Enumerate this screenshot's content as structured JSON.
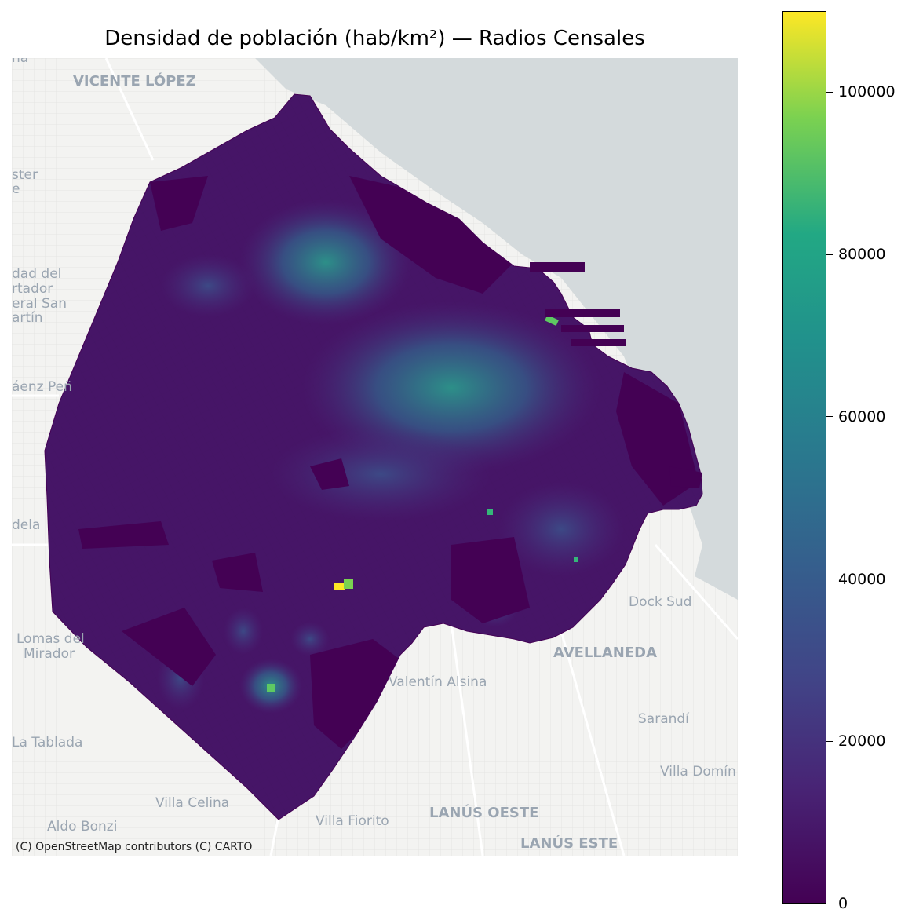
{
  "title": "Densidad de población (hab/km²) — Radios Censales",
  "attribution": "(C) OpenStreetMap contributors (C) CARTO",
  "basemap_labels": {
    "vicente_lopez": "VICENTE LÓPEZ",
    "ster": "ster",
    "e": "e",
    "dad_del": "dad del",
    "rtador": "rtador",
    "eral_san": "eral San",
    "artin": "artín",
    "saenz_pena": "áenz Peñ",
    "dela": "dela",
    "lomas_del": "Lomas del",
    "mirador": "Mirador",
    "la_tablada": "La Tablada",
    "aldo_bonzi": "Aldo Bonzi",
    "villa_celina": "Villa Celina",
    "villa_fiorito": "Villa Fiorito",
    "lanus_oeste": "LANÚS OESTE",
    "lanus_este": "LANÚS ESTE",
    "valentin_alsina": "Valentín Alsina",
    "avellaneda": "AVELLANEDA",
    "dock_sud": "Dock Sud",
    "sarandi": "Sarandí",
    "villa_domin": "Villa Domín",
    "na": "na"
  },
  "colorbar": {
    "ticks": [
      "0",
      "20000",
      "40000",
      "60000",
      "80000",
      "100000"
    ],
    "min": 0,
    "max": 110000,
    "colormap": "viridis"
  },
  "colors": {
    "water": "#d4dadc",
    "land": "#f2f2f0",
    "viridis_low": "#440154",
    "viridis_high": "#fde725"
  }
}
